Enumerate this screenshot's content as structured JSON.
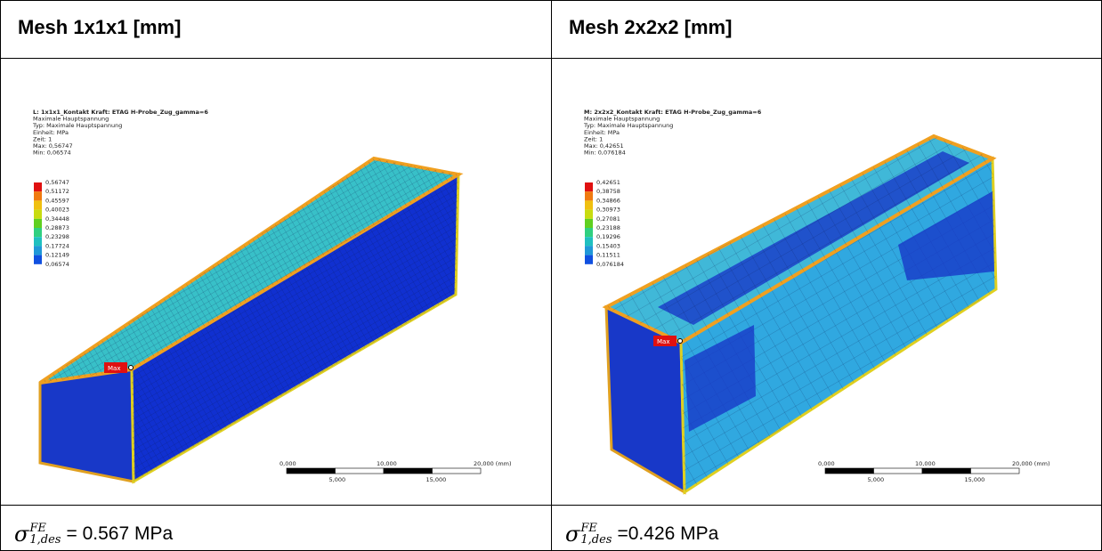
{
  "table": {
    "headers": [
      "Mesh 1x1x1 [mm]",
      "Mesh 2x2x2 [mm]"
    ],
    "images": [
      {
        "lines": [
          "L: 1x1x1_Kontakt Kraft: ETAG H-Probe_Zug_gamma=6",
          "Maximale Hauptspannung",
          "Typ: Maximale Hauptspannung",
          "Einheit: MPa",
          "Zeit: 1",
          "Max: 0,56747",
          "Min: 0,06574"
        ],
        "legend": [
          "0,56747",
          "0,51172",
          "0,45597",
          "0,40023",
          "0,34448",
          "0,28873",
          "0,23298",
          "0,17724",
          "0,12149",
          "0,06574"
        ],
        "max_label": "Max",
        "scale_top": [
          "0,000",
          "10,000",
          "20,000 (mm)"
        ],
        "scale_bottom": [
          "5,000",
          "15,000"
        ]
      },
      {
        "lines": [
          "M: 2x2x2_Kontakt Kraft: ETAG H-Probe_Zug_gamma=6",
          "Maximale Hauptspannung",
          "Typ: Maximale Hauptspannung",
          "Einheit: MPa",
          "Zeit: 1",
          "Max: 0,42651",
          "Min: 0,076184"
        ],
        "legend": [
          "0,42651",
          "0,38758",
          "0,34866",
          "0,30973",
          "0,27081",
          "0,23188",
          "0,19296",
          "0,15403",
          "0,11511",
          "0,076184"
        ],
        "max_label": "Max",
        "scale_top": [
          "0,000",
          "10,000",
          "20,000 (mm)"
        ],
        "scale_bottom": [
          "5,000",
          "15,000"
        ]
      }
    ],
    "formulas": [
      {
        "symbol": "σ",
        "sup": "FE",
        "sub": "1,des",
        "text": "= 0.567 MPa"
      },
      {
        "symbol": "σ",
        "sup": "FE",
        "sub": "1,des",
        "text": "=0.426 MPa"
      }
    ]
  }
}
